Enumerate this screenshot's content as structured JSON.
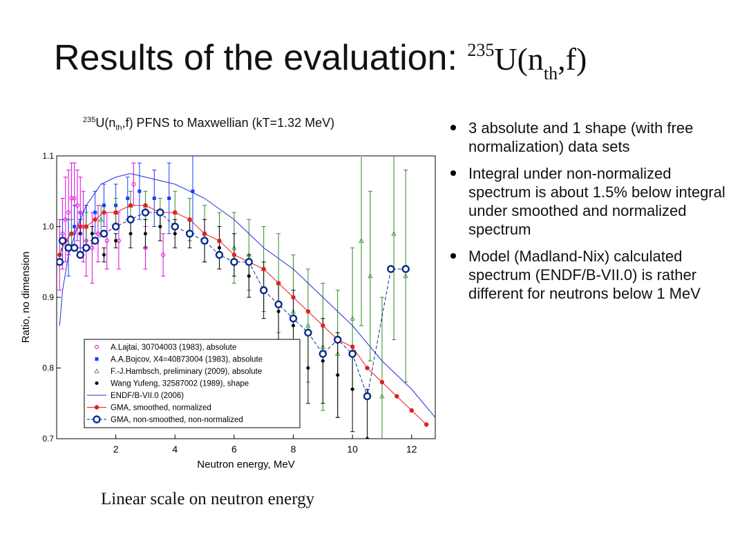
{
  "slide": {
    "title_text": "Results of the evaluation: ",
    "title_formula": {
      "mass": "235",
      "element": "U(n",
      "sub": "th",
      "tail": ",f)"
    },
    "caption": "Linear scale on neutron energy",
    "bullets": [
      "3 absolute and 1 shape (with free normalization) data sets",
      "Integral under non-normalized spectrum is about 1.5% below integral under smoothed and normalized spectrum",
      "Model (Madland-Nix) calculated spectrum (ENDF/B-VII.0) is rather different for neutrons below 1 MeV"
    ]
  },
  "chart_data": {
    "type": "scatter",
    "title": {
      "mass": "235",
      "pre": "U(n",
      "sub": "th",
      "post": ",f) PFNS to Maxwellian (kT=1.32 MeV)"
    },
    "xlabel": "Neutron energy, MeV",
    "ylabel": "Ratio, no dimension",
    "xlim": [
      0,
      12.8
    ],
    "ylim": [
      0.7,
      1.1
    ],
    "xticks": [
      2,
      4,
      6,
      8,
      10,
      12
    ],
    "yticks": [
      0.7,
      0.8,
      0.9,
      1.0,
      1.1
    ],
    "ytick_labels": [
      "0.7",
      "0.8",
      "0.9",
      "1.0",
      "1.1"
    ],
    "legend_position": "lower-left",
    "series": [
      {
        "name": "A.Lajtai, 30704003 (1983), absolute",
        "color": "#e000e0",
        "marker": "open-circle",
        "points": [
          {
            "x": 0.1,
            "y": 0.96,
            "err": 0.05
          },
          {
            "x": 0.2,
            "y": 0.99,
            "err": 0.05
          },
          {
            "x": 0.3,
            "y": 1.01,
            "err": 0.06
          },
          {
            "x": 0.4,
            "y": 1.02,
            "err": 0.06
          },
          {
            "x": 0.5,
            "y": 1.04,
            "err": 0.05
          },
          {
            "x": 0.6,
            "y": 1.04,
            "err": 0.05
          },
          {
            "x": 0.7,
            "y": 1.03,
            "err": 0.05
          },
          {
            "x": 0.8,
            "y": 1.02,
            "err": 0.05
          },
          {
            "x": 0.9,
            "y": 1.0,
            "err": 0.05
          },
          {
            "x": 1.0,
            "y": 0.98,
            "err": 0.05
          },
          {
            "x": 1.2,
            "y": 0.97,
            "err": 0.05
          },
          {
            "x": 1.4,
            "y": 0.99,
            "err": 0.04
          },
          {
            "x": 1.7,
            "y": 0.98,
            "err": 0.04
          },
          {
            "x": 2.1,
            "y": 0.98,
            "err": 0.04
          },
          {
            "x": 2.6,
            "y": 1.06,
            "err": 0.03
          },
          {
            "x": 3.0,
            "y": 0.97,
            "err": 0.03
          },
          {
            "x": 3.6,
            "y": 0.96,
            "err": 0.03
          }
        ]
      },
      {
        "name": "A.A.Bojcov, X4=40873004 (1983), absolute",
        "color": "#1a3cff",
        "marker": "filled-square",
        "points": [
          {
            "x": 0.2,
            "y": 0.98,
            "err": 0.03
          },
          {
            "x": 0.4,
            "y": 0.97,
            "err": 0.04
          },
          {
            "x": 0.6,
            "y": 1.0,
            "err": 0.03
          },
          {
            "x": 0.8,
            "y": 0.99,
            "err": 0.03
          },
          {
            "x": 1.0,
            "y": 1.0,
            "err": 0.03
          },
          {
            "x": 1.3,
            "y": 1.02,
            "err": 0.03
          },
          {
            "x": 1.6,
            "y": 1.03,
            "err": 0.03
          },
          {
            "x": 2.0,
            "y": 1.03,
            "err": 0.03
          },
          {
            "x": 2.4,
            "y": 1.04,
            "err": 0.03
          },
          {
            "x": 2.8,
            "y": 1.05,
            "err": 0.04
          },
          {
            "x": 3.3,
            "y": 1.04,
            "err": 0.04
          },
          {
            "x": 3.8,
            "y": 1.04,
            "err": 0.05
          },
          {
            "x": 4.6,
            "y": 1.05,
            "err": 0.06
          }
        ]
      },
      {
        "name": "F.-J.Hambsch, preliminary (2009), absolute",
        "color": "#2e8b20",
        "marker": "open-triangle",
        "points": [
          {
            "x": 0.5,
            "y": 0.99,
            "err": 0.02
          },
          {
            "x": 1.0,
            "y": 1.0,
            "err": 0.02
          },
          {
            "x": 1.5,
            "y": 1.01,
            "err": 0.02
          },
          {
            "x": 2.0,
            "y": 1.02,
            "err": 0.02
          },
          {
            "x": 2.5,
            "y": 1.03,
            "err": 0.02
          },
          {
            "x": 3.0,
            "y": 1.03,
            "err": 0.02
          },
          {
            "x": 3.5,
            "y": 1.02,
            "err": 0.02
          },
          {
            "x": 4.0,
            "y": 1.02,
            "err": 0.03
          },
          {
            "x": 4.5,
            "y": 1.01,
            "err": 0.03
          },
          {
            "x": 5.0,
            "y": 0.99,
            "err": 0.04
          },
          {
            "x": 5.5,
            "y": 0.98,
            "err": 0.04
          },
          {
            "x": 6.0,
            "y": 0.97,
            "err": 0.05
          },
          {
            "x": 6.5,
            "y": 0.96,
            "err": 0.05
          },
          {
            "x": 7.0,
            "y": 0.94,
            "err": 0.06
          },
          {
            "x": 7.5,
            "y": 0.92,
            "err": 0.07
          },
          {
            "x": 8.0,
            "y": 0.88,
            "err": 0.08
          },
          {
            "x": 8.5,
            "y": 0.86,
            "err": 0.08
          },
          {
            "x": 9.0,
            "y": 0.83,
            "err": 0.09
          },
          {
            "x": 9.5,
            "y": 0.82,
            "err": 0.09
          },
          {
            "x": 10.0,
            "y": 0.87,
            "err": 0.1
          },
          {
            "x": 10.3,
            "y": 0.98,
            "err": 0.12
          },
          {
            "x": 10.6,
            "y": 0.93,
            "err": 0.12
          },
          {
            "x": 11.0,
            "y": 0.76,
            "err": 0.14
          },
          {
            "x": 11.4,
            "y": 0.99,
            "err": 0.15
          },
          {
            "x": 11.8,
            "y": 0.93,
            "err": 0.15
          }
        ]
      },
      {
        "name": "Wang Yufeng, 32587002 (1989), shape",
        "color": "#000000",
        "marker": "filled-circle",
        "points": [
          {
            "x": 0.8,
            "y": 1.0,
            "err": 0.01
          },
          {
            "x": 1.2,
            "y": 0.99,
            "err": 0.01
          },
          {
            "x": 1.6,
            "y": 0.96,
            "err": 0.01
          },
          {
            "x": 2.0,
            "y": 0.98,
            "err": 0.01
          },
          {
            "x": 2.5,
            "y": 0.99,
            "err": 0.02
          },
          {
            "x": 3.0,
            "y": 0.99,
            "err": 0.02
          },
          {
            "x": 3.5,
            "y": 1.0,
            "err": 0.02
          },
          {
            "x": 4.0,
            "y": 0.99,
            "err": 0.02
          },
          {
            "x": 4.5,
            "y": 0.99,
            "err": 0.02
          },
          {
            "x": 5.0,
            "y": 0.98,
            "err": 0.03
          },
          {
            "x": 5.5,
            "y": 0.97,
            "err": 0.03
          },
          {
            "x": 6.0,
            "y": 0.96,
            "err": 0.03
          },
          {
            "x": 6.5,
            "y": 0.93,
            "err": 0.03
          },
          {
            "x": 7.0,
            "y": 0.91,
            "err": 0.04
          },
          {
            "x": 7.5,
            "y": 0.88,
            "err": 0.04
          },
          {
            "x": 8.0,
            "y": 0.86,
            "err": 0.05
          },
          {
            "x": 8.5,
            "y": 0.8,
            "err": 0.05
          },
          {
            "x": 9.0,
            "y": 0.81,
            "err": 0.06
          },
          {
            "x": 9.5,
            "y": 0.79,
            "err": 0.06
          },
          {
            "x": 10.0,
            "y": 0.77,
            "err": 0.06
          },
          {
            "x": 10.5,
            "y": 0.7,
            "err": 0.07
          }
        ]
      },
      {
        "name": "ENDF/B-VII.0 (2006)",
        "color": "#1a2fd6",
        "marker": "line",
        "points": [
          {
            "x": 0.1,
            "y": 0.86
          },
          {
            "x": 0.2,
            "y": 0.91
          },
          {
            "x": 0.4,
            "y": 0.96
          },
          {
            "x": 0.7,
            "y": 1.0
          },
          {
            "x": 1.0,
            "y": 1.03
          },
          {
            "x": 1.5,
            "y": 1.06
          },
          {
            "x": 2.0,
            "y": 1.07
          },
          {
            "x": 2.5,
            "y": 1.075
          },
          {
            "x": 3.0,
            "y": 1.07
          },
          {
            "x": 3.5,
            "y": 1.065
          },
          {
            "x": 4.0,
            "y": 1.06
          },
          {
            "x": 5.0,
            "y": 1.04
          },
          {
            "x": 6.0,
            "y": 1.01
          },
          {
            "x": 7.0,
            "y": 0.97
          },
          {
            "x": 8.0,
            "y": 0.94
          },
          {
            "x": 9.0,
            "y": 0.9
          },
          {
            "x": 10.0,
            "y": 0.86
          },
          {
            "x": 11.0,
            "y": 0.81
          },
          {
            "x": 12.0,
            "y": 0.77
          },
          {
            "x": 12.8,
            "y": 0.73
          }
        ]
      },
      {
        "name": "GMA, smoothed, normalized",
        "color": "#e02020",
        "marker": "filled-circle-line",
        "points": [
          {
            "x": 0.1,
            "y": 0.96
          },
          {
            "x": 0.3,
            "y": 0.98
          },
          {
            "x": 0.5,
            "y": 0.99
          },
          {
            "x": 0.8,
            "y": 1.0
          },
          {
            "x": 1.0,
            "y": 1.0
          },
          {
            "x": 1.3,
            "y": 1.01
          },
          {
            "x": 1.6,
            "y": 1.02
          },
          {
            "x": 2.0,
            "y": 1.02
          },
          {
            "x": 2.5,
            "y": 1.03
          },
          {
            "x": 3.0,
            "y": 1.03
          },
          {
            "x": 3.5,
            "y": 1.02
          },
          {
            "x": 4.0,
            "y": 1.02
          },
          {
            "x": 4.5,
            "y": 1.01
          },
          {
            "x": 5.0,
            "y": 0.99
          },
          {
            "x": 5.5,
            "y": 0.98
          },
          {
            "x": 6.0,
            "y": 0.96
          },
          {
            "x": 6.5,
            "y": 0.95
          },
          {
            "x": 7.0,
            "y": 0.94
          },
          {
            "x": 7.5,
            "y": 0.92
          },
          {
            "x": 8.0,
            "y": 0.9
          },
          {
            "x": 8.5,
            "y": 0.88
          },
          {
            "x": 9.0,
            "y": 0.86
          },
          {
            "x": 9.5,
            "y": 0.84
          },
          {
            "x": 10.0,
            "y": 0.83
          },
          {
            "x": 10.5,
            "y": 0.8
          },
          {
            "x": 11.0,
            "y": 0.78
          },
          {
            "x": 11.5,
            "y": 0.76
          },
          {
            "x": 12.0,
            "y": 0.74
          },
          {
            "x": 12.5,
            "y": 0.72
          }
        ]
      },
      {
        "name": "GMA, non-smoothed, non-normalized",
        "color": "#0a2a8a",
        "marker": "open-circle-dashed",
        "points": [
          {
            "x": 0.1,
            "y": 0.95
          },
          {
            "x": 0.2,
            "y": 0.98
          },
          {
            "x": 0.4,
            "y": 0.97
          },
          {
            "x": 0.6,
            "y": 0.97
          },
          {
            "x": 0.8,
            "y": 0.96
          },
          {
            "x": 1.0,
            "y": 0.97
          },
          {
            "x": 1.3,
            "y": 0.98
          },
          {
            "x": 1.6,
            "y": 0.99
          },
          {
            "x": 2.0,
            "y": 1.0
          },
          {
            "x": 2.5,
            "y": 1.01
          },
          {
            "x": 3.0,
            "y": 1.02
          },
          {
            "x": 3.5,
            "y": 1.02
          },
          {
            "x": 4.0,
            "y": 1.0
          },
          {
            "x": 4.5,
            "y": 0.99
          },
          {
            "x": 5.0,
            "y": 0.98
          },
          {
            "x": 5.5,
            "y": 0.96
          },
          {
            "x": 6.0,
            "y": 0.95
          },
          {
            "x": 6.5,
            "y": 0.95
          },
          {
            "x": 7.0,
            "y": 0.91
          },
          {
            "x": 7.5,
            "y": 0.89
          },
          {
            "x": 8.0,
            "y": 0.87
          },
          {
            "x": 8.5,
            "y": 0.85
          },
          {
            "x": 9.0,
            "y": 0.82
          },
          {
            "x": 9.5,
            "y": 0.84
          },
          {
            "x": 10.0,
            "y": 0.82
          },
          {
            "x": 10.5,
            "y": 0.76
          },
          {
            "x": 11.3,
            "y": 0.94
          },
          {
            "x": 11.8,
            "y": 0.94
          }
        ]
      }
    ]
  }
}
